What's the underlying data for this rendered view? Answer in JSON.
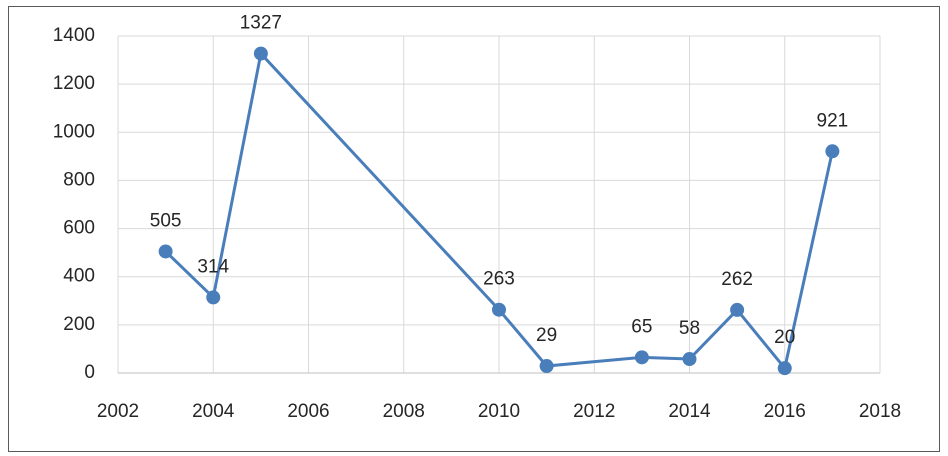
{
  "chart_data": {
    "type": "line",
    "x": [
      2003,
      2004,
      2005,
      2010,
      2011,
      2013,
      2014,
      2015,
      2016,
      2017
    ],
    "series": [
      {
        "color": "#4a7ebb",
        "values": [
          505,
          314,
          1327,
          263,
          29,
          65,
          58,
          262,
          20,
          921
        ]
      }
    ],
    "xlim": [
      2002,
      2018
    ],
    "xticks": [
      2002,
      2004,
      2006,
      2008,
      2010,
      2012,
      2014,
      2016,
      2018
    ],
    "ylim": [
      0,
      1400
    ],
    "yticks": [
      0,
      200,
      400,
      600,
      800,
      1000,
      1200,
      1400
    ],
    "grid": true,
    "data_labels": true
  }
}
